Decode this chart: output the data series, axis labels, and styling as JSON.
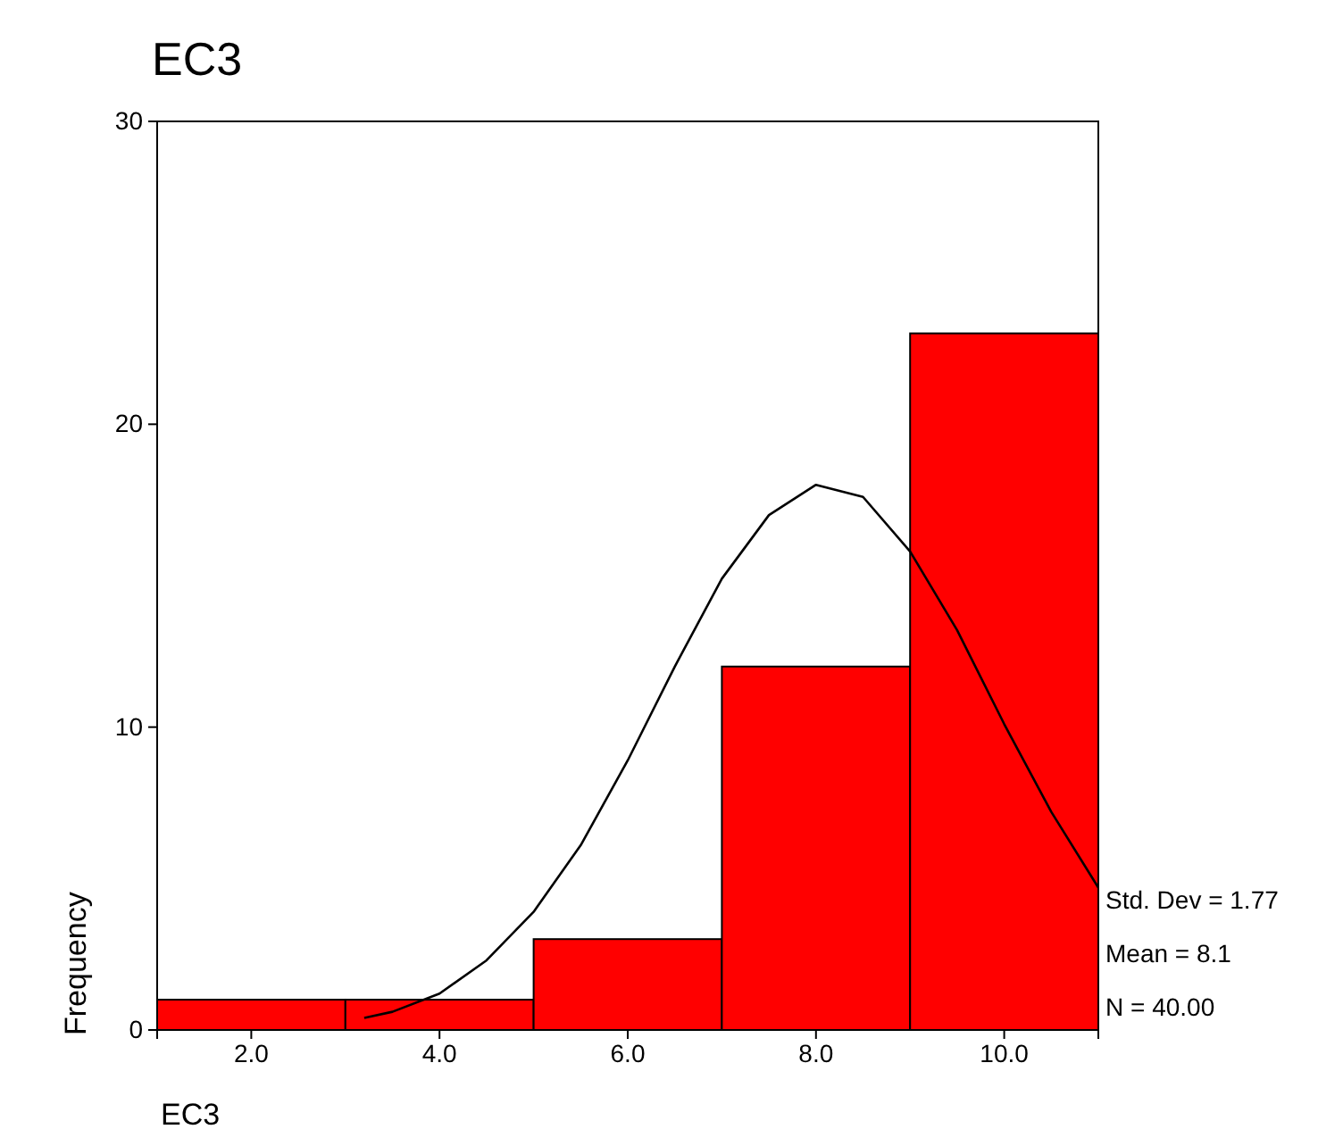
{
  "chart_data": {
    "type": "histogram",
    "title": "EC3",
    "xlabel": "EC3",
    "ylabel": "Frequency",
    "bins": [
      1,
      3,
      5,
      7,
      9,
      11
    ],
    "values": [
      1,
      1,
      3,
      12,
      23
    ],
    "color": "#ff0000",
    "series": [
      {
        "type": "line",
        "color": "#000000",
        "x": [
          3.2,
          3.5,
          4,
          4.5,
          5,
          5.5,
          6,
          6.5,
          7,
          7.5,
          8,
          8.5,
          9,
          9.5,
          10,
          10.5,
          11
        ],
        "values": [
          0.4,
          0.6,
          1.2,
          2.3,
          3.9,
          6.1,
          8.9,
          12.0,
          14.9,
          17.0,
          18.0,
          17.6,
          15.8,
          13.2,
          10.1,
          7.2,
          4.7
        ]
      }
    ],
    "xlim": [
      1,
      11
    ],
    "ylim": [
      0,
      30
    ],
    "xticks": [
      {
        "value": 2,
        "label": "2.0"
      },
      {
        "value": 4,
        "label": "4.0"
      },
      {
        "value": 6,
        "label": "6.0"
      },
      {
        "value": 8,
        "label": "8.0"
      },
      {
        "value": 10,
        "label": "10.0"
      }
    ],
    "yticks": [
      0,
      10,
      20,
      30
    ],
    "grid": false,
    "marker": "none",
    "line_style": "solid",
    "annotations": [
      "Std. Dev = 1.77",
      "Mean = 8.1",
      "N = 40.00"
    ]
  }
}
